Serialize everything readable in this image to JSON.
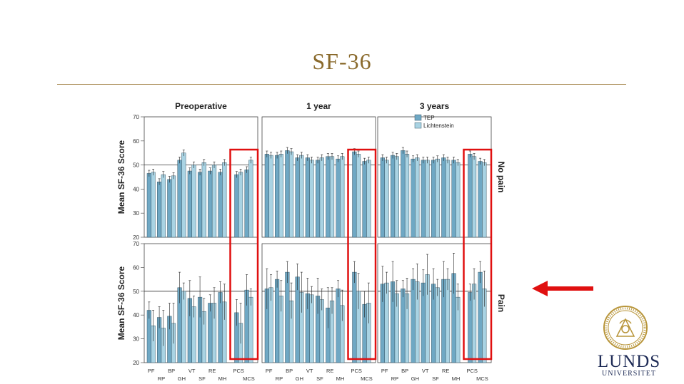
{
  "slide": {
    "title": "SF-36",
    "logo": {
      "line1": "LUNDS",
      "line2": "UNIVERSITET"
    }
  },
  "colors": {
    "title": "#8a6a2c",
    "rule": "#b49a6a",
    "tep": "#6fa8c4",
    "lichtenstein": "#a9d3e3",
    "highlight": "#e01010",
    "arrow": "#e01010",
    "logo": "#1d2a55"
  },
  "chart_data": {
    "type": "bar",
    "ylabel": "Mean SF-36 Score",
    "ylim": [
      20,
      70
    ],
    "yticks": [
      20,
      30,
      40,
      50,
      60,
      70
    ],
    "reference_line": 50,
    "panel_titles": [
      "Preoperative",
      "1 year",
      "3 years"
    ],
    "row_labels": [
      "No pain",
      "Pain"
    ],
    "legend": {
      "position": "top-right",
      "entries": [
        "TEP",
        "Lichtenstein"
      ]
    },
    "x_top_labels": [
      "PF",
      "BP",
      "VT",
      "RE",
      "MCS"
    ],
    "x_bottom_labels": [
      "RP",
      "GH",
      "SF",
      "MH",
      "PCS"
    ],
    "categories": [
      "PF",
      "RP",
      "BP",
      "GH",
      "VT",
      "SF",
      "RE",
      "MH",
      "PCS",
      "MCS"
    ],
    "highlighted_categories": [
      "PCS",
      "MCS"
    ],
    "panels": [
      {
        "time": "Preoperative",
        "pain": "No pain",
        "series": [
          {
            "name": "TEP",
            "values": [
              46.5,
              43,
              44,
              52,
              47.5,
              47,
              47.5,
              47,
              46,
              48
            ]
          },
          {
            "name": "Lichtenstein",
            "values": [
              47,
              46,
              45.5,
              55,
              50,
              51,
              50,
              51,
              47,
              52
            ]
          }
        ]
      },
      {
        "time": "1 year",
        "pain": "No pain",
        "series": [
          {
            "name": "TEP",
            "values": [
              54.5,
              54,
              56,
              53,
              53,
              52,
              53.5,
              52.5,
              55.5,
              51.5
            ]
          },
          {
            "name": "Lichtenstein",
            "values": [
              54,
              54.5,
              55.5,
              54,
              52,
              53,
              53.5,
              53.5,
              54.5,
              52
            ]
          }
        ]
      },
      {
        "time": "3 years",
        "pain": "No pain",
        "series": [
          {
            "name": "TEP",
            "values": [
              53,
              54,
              56,
              52.5,
              52,
              52,
              53,
              52,
              54.5,
              51.5
            ]
          },
          {
            "name": "Lichtenstein",
            "values": [
              52,
              53.5,
              54.5,
              53,
              52,
              52.5,
              52,
              51,
              53.5,
              51
            ]
          }
        ]
      },
      {
        "time": "Preoperative",
        "pain": "Pain",
        "series": [
          {
            "name": "TEP",
            "values": [
              42,
              39,
              39.5,
              51.5,
              47,
              47.5,
              45,
              49.5,
              41,
              50.5
            ]
          },
          {
            "name": "Lichtenstein",
            "values": [
              35.5,
              34.5,
              36.5,
              50,
              43.5,
              41.5,
              45,
              45.5,
              36.5,
              47.5
            ]
          }
        ]
      },
      {
        "time": "1 year",
        "pain": "Pain",
        "series": [
          {
            "name": "TEP",
            "values": [
              51,
              55,
              58,
              56,
              49,
              48,
              43,
              51,
              58,
              44.5
            ]
          },
          {
            "name": "Lichtenstein",
            "values": [
              51.5,
              48,
              46,
              49.5,
              48.5,
              46.5,
              46,
              44,
              50,
              45
            ]
          }
        ]
      },
      {
        "time": "3 years",
        "pain": "Pain",
        "series": [
          {
            "name": "TEP",
            "values": [
              53,
              54,
              51,
              55,
              53.5,
              53,
              55,
              57.5,
              49.5,
              58
            ]
          },
          {
            "name": "Lichtenstein",
            "values": [
              53.5,
              49,
              49,
              54,
              57,
              51.5,
              55,
              47.5,
              53,
              51
            ]
          }
        ]
      }
    ]
  }
}
